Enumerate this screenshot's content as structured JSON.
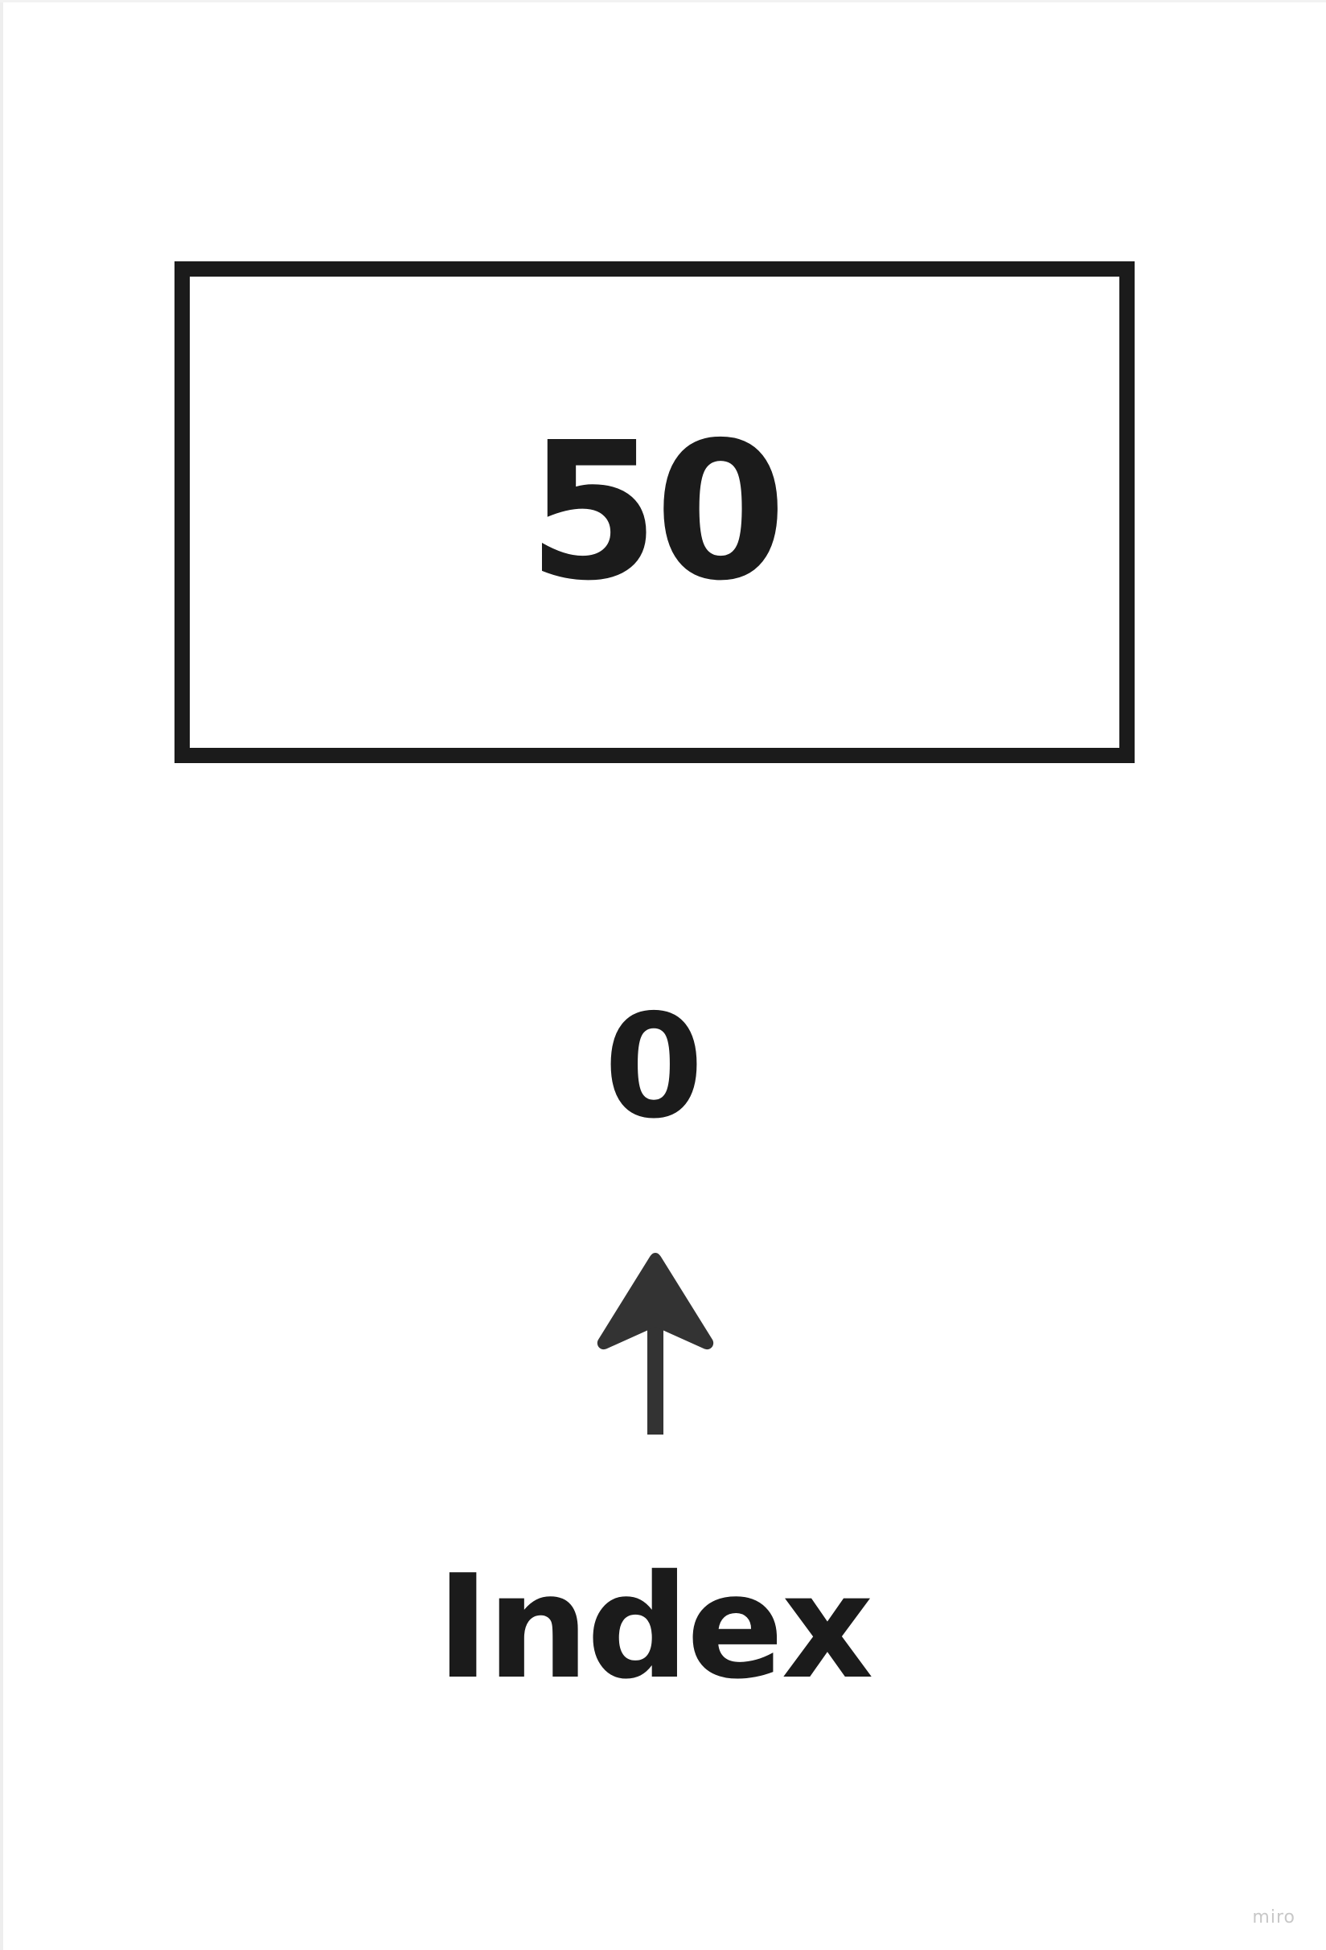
{
  "diagram": {
    "cell_value": "50",
    "index_number": "0",
    "index_label": "Index",
    "arrow_icon": "arrow-up-icon",
    "watermark": "miro"
  },
  "colors": {
    "ink": "#1b1b1b",
    "arrow": "#333333",
    "background": "#ffffff"
  }
}
